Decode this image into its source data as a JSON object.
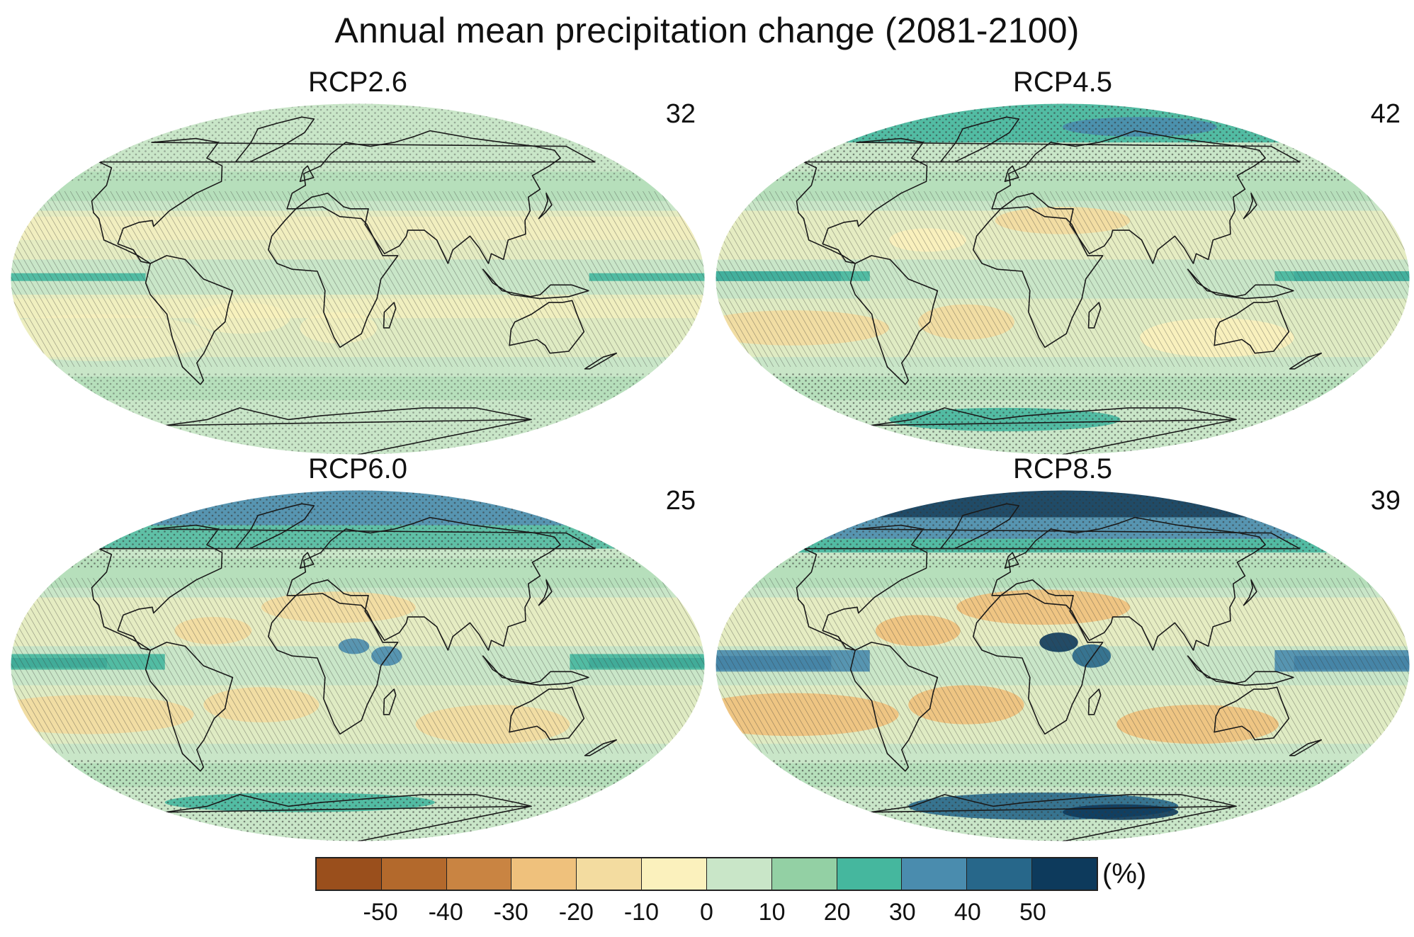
{
  "title": "Annual mean precipitation change (2081-2100)",
  "panels": [
    {
      "scenario": "RCP2.6",
      "model_count": "32"
    },
    {
      "scenario": "RCP4.5",
      "model_count": "42"
    },
    {
      "scenario": "RCP6.0",
      "model_count": "25"
    },
    {
      "scenario": "RCP8.5",
      "model_count": "39"
    }
  ],
  "colorbar": {
    "unit": "(%)",
    "ticks": [
      "-50",
      "-40",
      "-30",
      "-20",
      "-10",
      "0",
      "10",
      "20",
      "30",
      "40",
      "50"
    ],
    "colors": [
      "#9a4f1c",
      "#b3692c",
      "#c98442",
      "#efc17c",
      "#f3dca0",
      "#fbf1bd",
      "#c9e6c8",
      "#93d0a4",
      "#45b79e",
      "#4a8cae",
      "#27678a",
      "#0d3a5c"
    ]
  },
  "legend_colors": {
    "ocean_base": "#c9e6c8",
    "coastline": "#1a1a1a"
  }
}
